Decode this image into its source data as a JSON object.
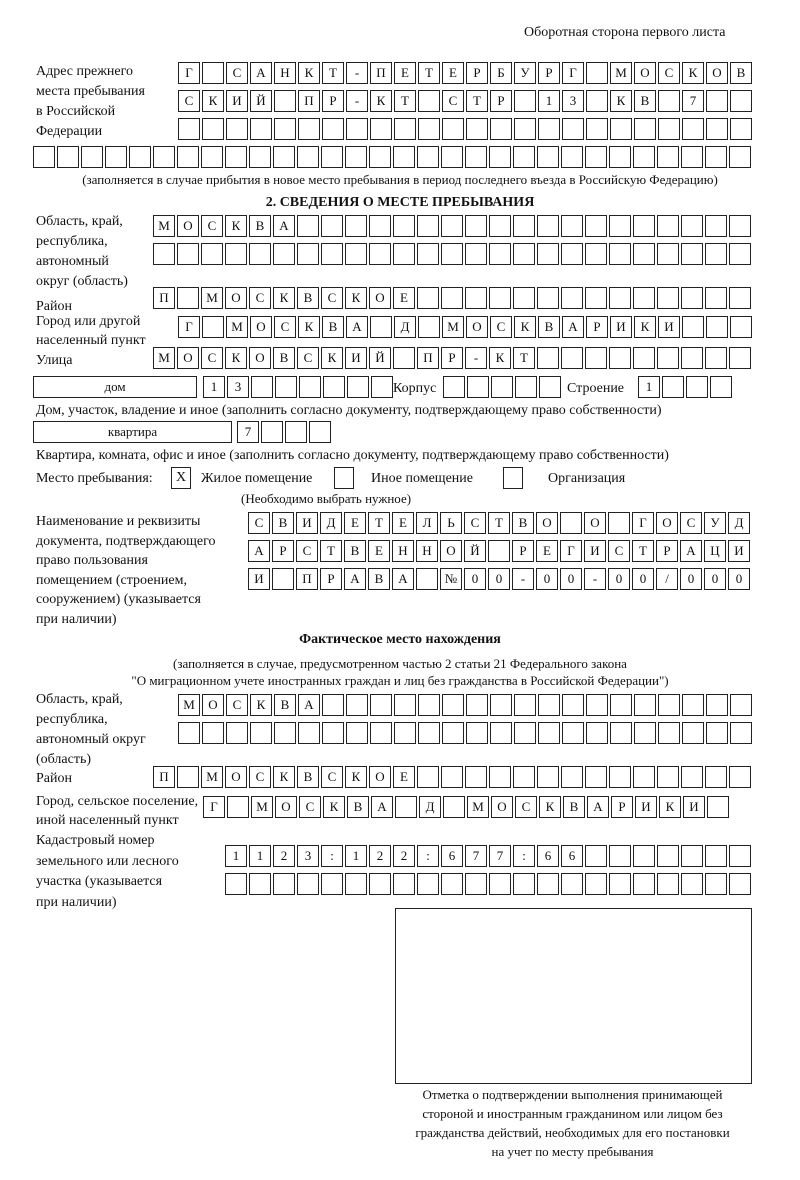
{
  "header": "Оборотная сторона первого листа",
  "prev_address": {
    "label": [
      "Адрес прежнего",
      "места пребывания",
      "в Российской",
      "Федерации"
    ],
    "rows": [
      [
        "Г",
        "",
        "С",
        "А",
        "Н",
        "К",
        "Т",
        "-",
        "П",
        "Е",
        "Т",
        "Е",
        "Р",
        "Б",
        "У",
        "Р",
        "Г",
        "",
        "М",
        "О",
        "С",
        "К",
        "О",
        "В"
      ],
      [
        "С",
        "К",
        "И",
        "Й",
        "",
        "П",
        "Р",
        "-",
        "К",
        "Т",
        "",
        "С",
        "Т",
        "Р",
        "",
        "1",
        "3",
        "",
        "К",
        "В",
        "",
        "7",
        "",
        ""
      ],
      [
        "",
        "",
        "",
        "",
        "",
        "",
        "",
        "",
        "",
        "",
        "",
        "",
        "",
        "",
        "",
        "",
        "",
        "",
        "",
        "",
        "",
        "",
        "",
        ""
      ],
      [
        "",
        "",
        "",
        "",
        "",
        "",
        "",
        "",
        "",
        "",
        "",
        "",
        "",
        "",
        "",
        "",
        "",
        "",
        "",
        "",
        "",
        "",
        "",
        "",
        "",
        "",
        "",
        "",
        "",
        ""
      ]
    ],
    "note": "(заполняется в случае прибытия в новое место пребывания в период последнего въезда в Российскую Федерацию)"
  },
  "section2": {
    "title": "2. СВЕДЕНИЯ О МЕСТЕ ПРЕБЫВАНИЯ",
    "region_label": [
      "Область, край,",
      "республика,",
      "автономный",
      "округ (область)"
    ],
    "region_rows": [
      [
        "М",
        "О",
        "С",
        "К",
        "В",
        "А",
        "",
        "",
        "",
        "",
        "",
        "",
        "",
        "",
        "",
        "",
        "",
        "",
        "",
        "",
        "",
        "",
        "",
        "",
        ""
      ],
      [
        "",
        "",
        "",
        "",
        "",
        "",
        "",
        "",
        "",
        "",
        "",
        "",
        "",
        "",
        "",
        "",
        "",
        "",
        "",
        "",
        "",
        "",
        "",
        "",
        ""
      ]
    ],
    "district_label": "Район",
    "district_row": [
      "П",
      "",
      "М",
      "О",
      "С",
      "К",
      "В",
      "С",
      "К",
      "О",
      "Е",
      "",
      "",
      "",
      "",
      "",
      "",
      "",
      "",
      "",
      "",
      "",
      "",
      "",
      ""
    ],
    "city_label": [
      "Город или другой",
      "населенный пункт"
    ],
    "city_row": [
      "Г",
      "",
      "М",
      "О",
      "С",
      "К",
      "В",
      "А",
      "",
      "Д",
      "",
      "М",
      "О",
      "С",
      "К",
      "В",
      "А",
      "Р",
      "И",
      "К",
      "И",
      "",
      "",
      ""
    ],
    "street_label": "Улица",
    "street_row": [
      "М",
      "О",
      "С",
      "К",
      "О",
      "В",
      "С",
      "К",
      "И",
      "Й",
      "",
      "П",
      "Р",
      "-",
      "К",
      "Т",
      "",
      "",
      "",
      "",
      "",
      "",
      "",
      "",
      ""
    ],
    "house_type": "дом",
    "house_cells": [
      "1",
      "3",
      "",
      "",
      "",
      "",
      "",
      ""
    ],
    "korpus_label": "Корпус",
    "korpus_cells": [
      "",
      "",
      "",
      "",
      ""
    ],
    "building_label": "Строение",
    "building_cells": [
      "1",
      "",
      "",
      ""
    ],
    "house_note": "Дом, участок, владение и иное (заполнить согласно документу, подтверждающему право собственности)",
    "apt_type": "квартира",
    "apt_cells": [
      "7",
      "",
      "",
      ""
    ],
    "apt_note": "Квартира, комната, офис и иное (заполнить согласно документу, подтверждающему право собственности)",
    "stay_label": "Место пребывания:",
    "stay_options": [
      {
        "label": "Жилое помещение",
        "mark": "Х"
      },
      {
        "label": "Иное помещение",
        "mark": ""
      },
      {
        "label": "Организация",
        "mark": ""
      }
    ],
    "stay_note": "(Необходимо выбрать нужное)",
    "doc_label": [
      "Наименование и реквизиты",
      "документа, подтверждающего",
      "право пользования",
      "помещением (строением,",
      "сооружением) (указывается",
      "при наличии)"
    ],
    "doc_rows": [
      [
        "С",
        "В",
        "И",
        "Д",
        "Е",
        "Т",
        "Е",
        "Л",
        "Ь",
        "С",
        "Т",
        "В",
        "О",
        "",
        "О",
        "",
        "Г",
        "О",
        "С",
        "У",
        "Д"
      ],
      [
        "А",
        "Р",
        "С",
        "Т",
        "В",
        "Е",
        "Н",
        "Н",
        "О",
        "Й",
        "",
        "Р",
        "Е",
        "Г",
        "И",
        "С",
        "Т",
        "Р",
        "А",
        "Ц",
        "И"
      ],
      [
        "И",
        "",
        "П",
        "Р",
        "А",
        "В",
        "А",
        "",
        "№",
        "0",
        "0",
        "-",
        "0",
        "0",
        "-",
        "0",
        "0",
        "/",
        "0",
        "0",
        "0"
      ]
    ]
  },
  "actual": {
    "title": "Фактическое место нахождения",
    "note": [
      "(заполняется в случае, предусмотренном частью 2 статьи 21 Федерального закона",
      "\"О миграционном учете иностранных граждан и лиц без гражданства в Российской Федерации\")"
    ],
    "region_label": [
      "Область, край,",
      "республика,",
      "автономный округ",
      "(область)"
    ],
    "region_rows": [
      [
        "М",
        "О",
        "С",
        "К",
        "В",
        "А",
        "",
        "",
        "",
        "",
        "",
        "",
        "",
        "",
        "",
        "",
        "",
        "",
        "",
        "",
        "",
        "",
        "",
        ""
      ],
      [
        "",
        "",
        "",
        "",
        "",
        "",
        "",
        "",
        "",
        "",
        "",
        "",
        "",
        "",
        "",
        "",
        "",
        "",
        "",
        "",
        "",
        "",
        "",
        ""
      ]
    ],
    "district_label": "Район",
    "district_row": [
      "П",
      "",
      "М",
      "О",
      "С",
      "К",
      "В",
      "С",
      "К",
      "О",
      "Е",
      "",
      "",
      "",
      "",
      "",
      "",
      "",
      "",
      "",
      "",
      "",
      "",
      "",
      ""
    ],
    "city_label": [
      "Город, сельское поселение,",
      "иной населенный пункт"
    ],
    "city_row": [
      "Г",
      "",
      "М",
      "О",
      "С",
      "К",
      "В",
      "А",
      "",
      "Д",
      "",
      "М",
      "О",
      "С",
      "К",
      "В",
      "А",
      "Р",
      "И",
      "К",
      "И",
      ""
    ],
    "cadastre_label": [
      "Кадастровый номер",
      "земельного или лесного",
      "участка (указывается",
      "при наличии)"
    ],
    "cadastre_rows": [
      [
        "1",
        "1",
        "2",
        "3",
        ":",
        "1",
        "2",
        "2",
        ":",
        "6",
        "7",
        "7",
        ":",
        "6",
        "6",
        "",
        "",
        "",
        "",
        "",
        "",
        ""
      ],
      [
        "",
        "",
        "",
        "",
        "",
        "",
        "",
        "",
        "",
        "",
        "",
        "",
        "",
        "",
        "",
        "",
        "",
        "",
        "",
        "",
        "",
        ""
      ]
    ]
  },
  "stamp_caption": [
    "Отметка о подтверждении выполнения принимающей",
    "стороной и иностранным гражданином или лицом без",
    "гражданства действий, необходимых для его постановки",
    "на учет по месту пребывания"
  ]
}
